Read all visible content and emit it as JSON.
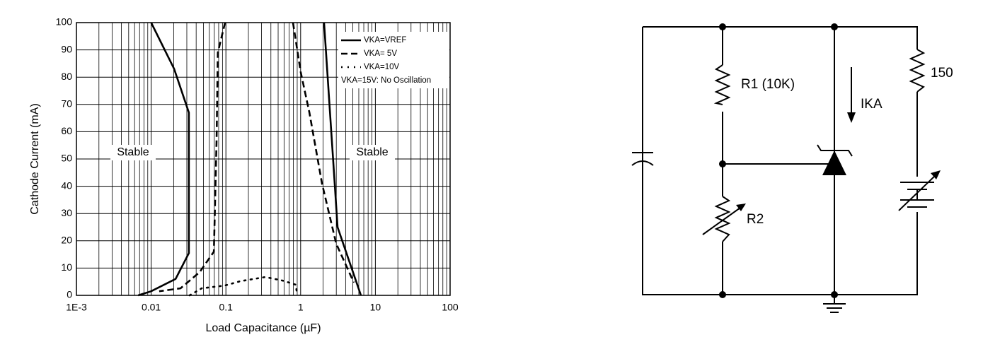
{
  "chart_data": {
    "type": "line",
    "x_label": "Load Capacitance (µF)",
    "y_label": "Cathode Current (mA)",
    "xscale": "log",
    "grid": true,
    "xlim": [
      0.001,
      100
    ],
    "xticks": [
      {
        "value": 0.001,
        "label": "1E-3"
      },
      0.01,
      0.1,
      1,
      10,
      100
    ],
    "ylim": [
      0,
      100
    ],
    "yticks": [
      0,
      10,
      20,
      30,
      40,
      50,
      60,
      70,
      80,
      90,
      100
    ],
    "legend": "upper right",
    "legend_note": "VKA=15V: No Oscillation",
    "annotations": [
      "Stable",
      "Stable"
    ],
    "series": [
      {
        "name": "VKA=VREF",
        "color": "#000000",
        "style": "solid",
        "x": [
          0.01,
          0.0203,
          0.032,
          0.032,
          0.0212,
          0.01,
          0.0067,
          null,
          2.06,
          3.12,
          6.41
        ],
        "values": [
          100,
          83,
          67,
          15.5,
          6,
          1.5,
          0,
          null,
          100,
          25,
          0
        ]
      },
      {
        "name": "VKA= 5V",
        "color": "#000000",
        "style": "dashed",
        "x": [
          0.0975,
          0.078,
          0.075,
          0.069,
          0.0445,
          0.0247,
          0.0128,
          null,
          0.79,
          1.0,
          1.31,
          1.93,
          2.99,
          5.15
        ],
        "values": [
          100,
          89,
          56.5,
          16,
          8.5,
          2.6,
          1.5,
          null,
          100,
          82,
          67,
          41,
          19,
          4.7
        ]
      },
      {
        "name": "VKA=10V",
        "color": "#000000",
        "style": "dotted",
        "x": [
          0.0327,
          0.0475,
          0.097,
          0.157,
          0.337,
          0.58,
          0.86,
          0.9
        ],
        "values": [
          0,
          2.6,
          3.6,
          5.2,
          6.7,
          5.4,
          3.9,
          0
        ]
      }
    ]
  },
  "diagram": {
    "labels": {
      "r1": "R1 (10K)",
      "r150": "150",
      "ika": "IKA",
      "r2": "R2"
    }
  }
}
